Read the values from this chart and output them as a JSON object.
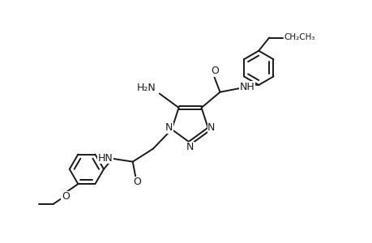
{
  "bg_color": "#ffffff",
  "line_color": "#1a1a1a",
  "line_width": 1.4,
  "font_size": 9,
  "figsize": [
    4.6,
    3.0
  ],
  "dpi": 100,
  "xlim": [
    0,
    10
  ],
  "ylim": [
    0,
    6.5
  ]
}
